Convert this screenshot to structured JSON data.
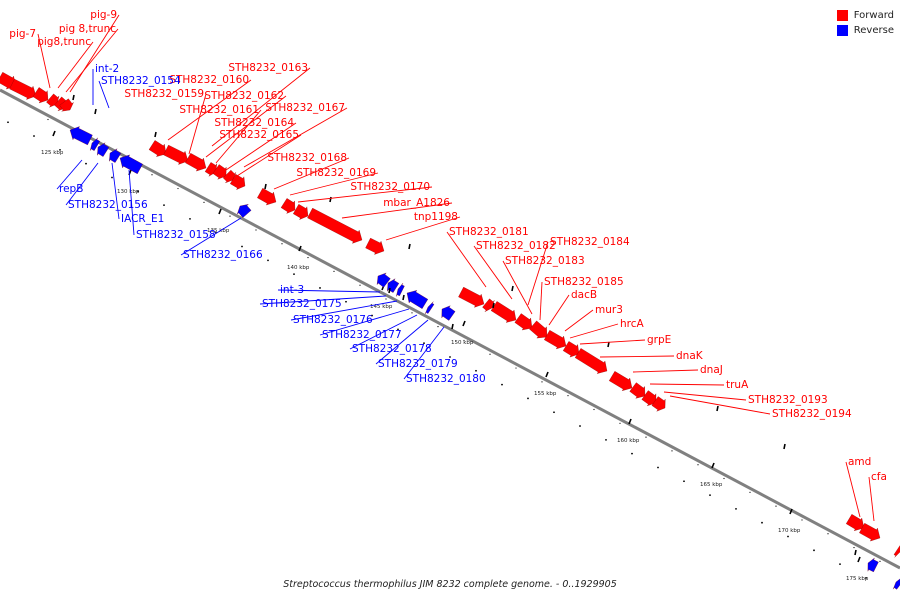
{
  "legend": [
    {
      "label": "Forward",
      "color": "#ff0000"
    },
    {
      "label": "Reverse",
      "color": "#0000ff"
    }
  ],
  "caption": "Streptococcus thermophilus JIM 8232 complete genome. - 0..1929905",
  "colors": {
    "forward": "#ff0000",
    "reverse": "#0000ff",
    "backbone": "#808080",
    "tick": "#000000",
    "leader_forward": "#ff0000",
    "leader_reverse": "#0000ff"
  },
  "scale_labels": [
    "125 kbp",
    "130 kbp",
    "135 kbp",
    "140 kbp",
    "145 kbp",
    "150 kbp",
    "155 kbp",
    "160 kbp",
    "165 kbp",
    "170 kbp",
    "175 kbp"
  ],
  "forward_genes": [
    "pig-7",
    "pig-9",
    "pig 8,trunc",
    "pig8,trunc",
    "STH8232_0163",
    "STH8232_0160",
    "STH8232_0159",
    "STH8232_0162",
    "STH8232_0161",
    "STH8232_0167",
    "STH8232_0164",
    "STH8232_0165",
    "STH8232_0168",
    "STH8232_0169",
    "STH8232_0170",
    "mbar_A1826",
    "tnp1198",
    "STH8232_0181",
    "STH8232_0182",
    "STH8232_0184",
    "STH8232_0183",
    "STH8232_0185",
    "dacB",
    "mur3",
    "hrcA",
    "grpE",
    "dnaK",
    "dnaJ",
    "truA",
    "STH8232_0193",
    "STH8232_0194",
    "amd",
    "cfa"
  ],
  "reverse_genes": [
    "int-2",
    "STH8232_0154",
    "repB",
    "STH8232_0156",
    "IACR_E1",
    "STH8232_0158",
    "STH8232_0166",
    "int-3",
    "STH8232_0175",
    "STH8232_0176",
    "STH8232_0177",
    "STH8232_0178",
    "STH8232_0179",
    "STH8232_0180"
  ]
}
